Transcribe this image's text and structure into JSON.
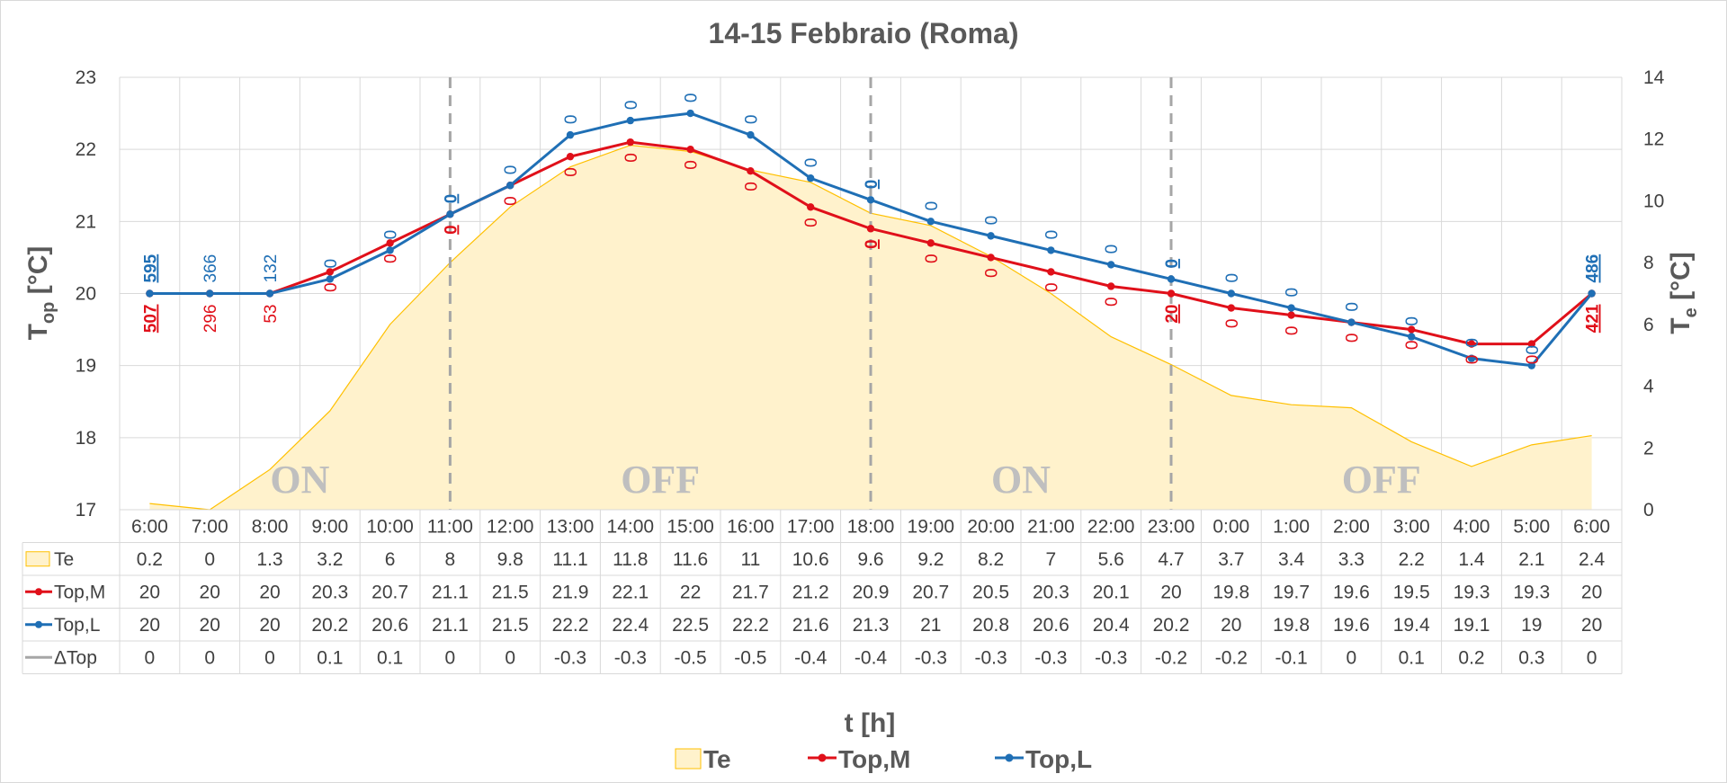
{
  "chart_data": {
    "type": "line",
    "title": "14-15 Febbraio (Roma)",
    "xlabel": "t [h]",
    "ylabel_left": {
      "main": "T",
      "sub": "op",
      "unit": " [°C]"
    },
    "ylabel_right": {
      "main": "T",
      "sub": "e",
      "unit": " [°C]"
    },
    "categories": [
      "6:00",
      "7:00",
      "8:00",
      "9:00",
      "10:00",
      "11:00",
      "12:00",
      "13:00",
      "14:00",
      "15:00",
      "16:00",
      "17:00",
      "18:00",
      "19:00",
      "20:00",
      "21:00",
      "22:00",
      "23:00",
      "0:00",
      "1:00",
      "2:00",
      "3:00",
      "4:00",
      "5:00",
      "6:00"
    ],
    "ylim_left": [
      17,
      23
    ],
    "yticks_left": [
      17,
      18,
      19,
      20,
      21,
      22,
      23
    ],
    "ylim_right": [
      0,
      14
    ],
    "yticks_right": [
      0,
      2,
      4,
      6,
      8,
      10,
      12,
      14
    ],
    "grid": true,
    "legend_position": "bottom",
    "series": [
      {
        "name": "Te",
        "type": "area",
        "axis": "right",
        "color": "#ffc000",
        "fill": "#fff2cc",
        "values": [
          0.2,
          0,
          1.3,
          3.2,
          6,
          8,
          9.8,
          11.1,
          11.8,
          11.6,
          11,
          10.6,
          9.6,
          9.2,
          8.2,
          7,
          5.6,
          4.7,
          3.7,
          3.4,
          3.3,
          2.2,
          1.4,
          2.1,
          2.4
        ]
      },
      {
        "name": "Top,M",
        "type": "line",
        "axis": "left",
        "color": "#e0101a",
        "values": [
          20,
          20,
          20,
          20.3,
          20.7,
          21.1,
          21.5,
          21.9,
          22.1,
          22,
          21.7,
          21.2,
          20.9,
          20.7,
          20.5,
          20.3,
          20.1,
          20,
          19.8,
          19.7,
          19.6,
          19.5,
          19.3,
          19.3,
          20
        ]
      },
      {
        "name": "Top,L",
        "type": "line",
        "axis": "left",
        "color": "#1f6fb5",
        "values": [
          20,
          20,
          20,
          20.2,
          20.6,
          21.1,
          21.5,
          22.2,
          22.4,
          22.5,
          22.2,
          21.6,
          21.3,
          21,
          20.8,
          20.6,
          20.4,
          20.2,
          20,
          19.8,
          19.6,
          19.4,
          19.1,
          19,
          20
        ]
      },
      {
        "name": "ΔTop",
        "type": "table-only",
        "color": "#a6a6a6",
        "values": [
          "0",
          "0",
          "0",
          "0.1",
          "0.1",
          "0",
          "0",
          "-0.3",
          "-0.3",
          "-0.5",
          "-0.5",
          "-0.4",
          "-0.4",
          "-0.3",
          "-0.3",
          "-0.3",
          "-0.3",
          "-0.2",
          "-0.2",
          "-0.1",
          "0",
          "0.1",
          "0.2",
          "0.3",
          "0"
        ]
      }
    ],
    "table_values": {
      "Te": [
        "0.2",
        "0",
        "1.3",
        "3.2",
        "6",
        "8",
        "9.8",
        "11.1",
        "11.8",
        "11.6",
        "11",
        "10.6",
        "9.6",
        "9.2",
        "8.2",
        "7",
        "5.6",
        "4.7",
        "3.7",
        "3.4",
        "3.3",
        "2.2",
        "1.4",
        "2.1",
        "2.4"
      ],
      "Top,M": [
        "20",
        "20",
        "20",
        "20.3",
        "20.7",
        "21.1",
        "21.5",
        "21.9",
        "22.1",
        "22",
        "21.7",
        "21.2",
        "20.9",
        "20.7",
        "20.5",
        "20.3",
        "20.1",
        "20",
        "19.8",
        "19.7",
        "19.6",
        "19.5",
        "19.3",
        "19.3",
        "20"
      ],
      "Top,L": [
        "20",
        "20",
        "20",
        "20.2",
        "20.6",
        "21.1",
        "21.5",
        "22.2",
        "22.4",
        "22.5",
        "22.2",
        "21.6",
        "21.3",
        "21",
        "20.8",
        "20.6",
        "20.4",
        "20.2",
        "20",
        "19.8",
        "19.6",
        "19.4",
        "19.1",
        "19",
        "20"
      ]
    },
    "point_labels_M": [
      "507",
      "296",
      "53",
      "0",
      "0",
      "0",
      "0",
      "0",
      "0",
      "0",
      "0",
      "0",
      "0",
      "0",
      "0",
      "0",
      "0",
      "20",
      "0",
      "0",
      "0",
      "0",
      "0",
      "0",
      "421"
    ],
    "point_labels_L": [
      "595",
      "366",
      "132",
      "0",
      "0",
      "0",
      "0",
      "0",
      "0",
      "0",
      "0",
      "0",
      "0",
      "0",
      "0",
      "0",
      "0",
      "0",
      "0",
      "0",
      "0",
      "0",
      "0",
      "0",
      "486"
    ],
    "underlined_label_indices": [
      0,
      5,
      12,
      17,
      24
    ],
    "phase_boundaries": [
      5,
      12,
      17
    ],
    "phases": [
      {
        "label": "ON",
        "from": 0,
        "to": 5
      },
      {
        "label": "OFF",
        "from": 5,
        "to": 12
      },
      {
        "label": "ON",
        "from": 12,
        "to": 17
      },
      {
        "label": "OFF",
        "from": 17,
        "to": 24
      }
    ]
  }
}
